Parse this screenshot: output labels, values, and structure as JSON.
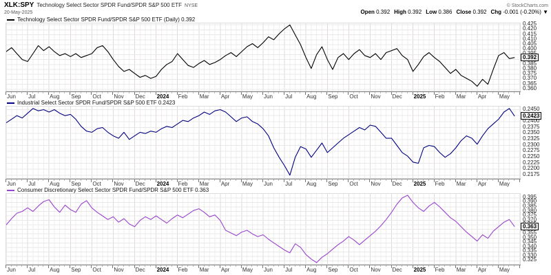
{
  "header": {
    "symbol": "XLK:SPY",
    "name": "Technology Select Sector SPDR Fund/SPDR S&P 500 ETF",
    "exchange": "NYSE",
    "date": "20-May-2025",
    "copyright": "© StockCharts.com",
    "ohlc": [
      {
        "label": "Open",
        "value": "0.392"
      },
      {
        "label": "High",
        "value": "0.392"
      },
      {
        "label": "Low",
        "value": "0.386"
      },
      {
        "label": "Close",
        "value": "0.392"
      },
      {
        "label": "Chg",
        "value": "-0.001 (-0.20%) ▼"
      }
    ]
  },
  "style": {
    "background": "#ffffff",
    "grid_week": "#f1efee",
    "grid_month": "#e2d8d8",
    "grid_horizontal": "#e8e8e8",
    "axis_text": "#222222",
    "frame": "#dddddd"
  },
  "chart_data": [
    {
      "type": "line",
      "title": "Technology Select Sector SPDR Fund/SPDR S&P 500 ETF (Daily) 0.392",
      "color": "#000000",
      "last_value": "0.392",
      "ylim": [
        0.3585,
        0.4265
      ],
      "yticks": [
        0.425,
        0.42,
        0.415,
        0.41,
        0.405,
        0.4,
        0.395,
        0.39,
        0.385,
        0.38,
        0.375,
        0.37,
        0.365,
        0.36
      ],
      "ytick_decimals": 3,
      "x_months": [
        "Jun",
        "Jul",
        "Aug",
        "Sep",
        "Oct",
        "Nov",
        "Dec",
        "2024",
        "Feb",
        "Mar",
        "Apr",
        "May",
        "Jun",
        "Jul",
        "Aug",
        "Sep",
        "Oct",
        "Nov",
        "Dec",
        "2025",
        "Feb",
        "Mar",
        "Apr",
        "May"
      ],
      "values": [
        0.398,
        0.402,
        0.396,
        0.39,
        0.388,
        0.396,
        0.404,
        0.399,
        0.403,
        0.398,
        0.394,
        0.396,
        0.393,
        0.396,
        0.392,
        0.394,
        0.396,
        0.402,
        0.404,
        0.398,
        0.39,
        0.383,
        0.378,
        0.38,
        0.376,
        0.372,
        0.374,
        0.371,
        0.373,
        0.38,
        0.385,
        0.388,
        0.396,
        0.39,
        0.384,
        0.382,
        0.386,
        0.389,
        0.385,
        0.387,
        0.39,
        0.394,
        0.397,
        0.393,
        0.398,
        0.403,
        0.406,
        0.402,
        0.407,
        0.413,
        0.41,
        0.416,
        0.421,
        0.425,
        0.415,
        0.405,
        0.392,
        0.381,
        0.395,
        0.403,
        0.39,
        0.38,
        0.392,
        0.396,
        0.39,
        0.396,
        0.4,
        0.394,
        0.392,
        0.396,
        0.39,
        0.397,
        0.399,
        0.401,
        0.394,
        0.39,
        0.378,
        0.385,
        0.393,
        0.397,
        0.392,
        0.388,
        0.382,
        0.376,
        0.38,
        0.374,
        0.371,
        0.368,
        0.363,
        0.37,
        0.365,
        0.38,
        0.394,
        0.397,
        0.391,
        0.392
      ]
    },
    {
      "type": "line",
      "title": "Industrial Select Sector SPDR Fund/SPDR S&P 500 ETF 0.2423",
      "color": "#000080",
      "last_value": "0.2423",
      "ylim": [
        0.2163,
        0.2463
      ],
      "yticks": [
        0.245,
        0.2425,
        0.24,
        0.2375,
        0.235,
        0.2325,
        0.23,
        0.2275,
        0.225,
        0.2225,
        0.22,
        0.2175
      ],
      "ytick_decimals": 4,
      "x_months": [
        "Jun",
        "Jul",
        "Aug",
        "Sep",
        "Oct",
        "Nov",
        "Dec",
        "2024",
        "Feb",
        "Mar",
        "Apr",
        "May",
        "Jun",
        "Jul",
        "Aug",
        "Sep",
        "Oct",
        "Nov",
        "Dec",
        "2025",
        "Feb",
        "Mar",
        "Apr",
        "May"
      ],
      "values": [
        0.2395,
        0.241,
        0.2425,
        0.2415,
        0.2435,
        0.2455,
        0.2445,
        0.245,
        0.244,
        0.245,
        0.2435,
        0.2425,
        0.243,
        0.241,
        0.238,
        0.236,
        0.2355,
        0.237,
        0.2375,
        0.2355,
        0.234,
        0.233,
        0.2355,
        0.2325,
        0.234,
        0.2355,
        0.235,
        0.236,
        0.2355,
        0.237,
        0.238,
        0.2375,
        0.239,
        0.2405,
        0.24,
        0.2415,
        0.2425,
        0.244,
        0.243,
        0.2445,
        0.245,
        0.244,
        0.242,
        0.24,
        0.2415,
        0.242,
        0.24,
        0.239,
        0.237,
        0.234,
        0.229,
        0.225,
        0.2215,
        0.2175,
        0.225,
        0.2295,
        0.2285,
        0.225,
        0.228,
        0.231,
        0.227,
        0.229,
        0.231,
        0.233,
        0.2345,
        0.236,
        0.2375,
        0.2365,
        0.2385,
        0.238,
        0.2355,
        0.233,
        0.233,
        0.23,
        0.227,
        0.2255,
        0.223,
        0.2225,
        0.229,
        0.23,
        0.2295,
        0.227,
        0.225,
        0.2265,
        0.229,
        0.232,
        0.234,
        0.233,
        0.2305,
        0.234,
        0.237,
        0.239,
        0.241,
        0.244,
        0.2455,
        0.2423
      ]
    },
    {
      "type": "line",
      "title": "Consumer Discretionary Select Sector SPDR Fund/SPDR S&P 500 ETF 0.363",
      "color": "#9944CC",
      "last_value": "0.363",
      "ylim": [
        0.3215,
        0.3995
      ],
      "yticks": [
        0.395,
        0.39,
        0.385,
        0.38,
        0.375,
        0.37,
        0.365,
        0.36,
        0.355,
        0.35,
        0.345,
        0.34,
        0.335,
        0.33,
        0.325
      ],
      "ytick_decimals": 3,
      "x_months": [
        "Jun",
        "Jul",
        "Aug",
        "Sep",
        "Oct",
        "Nov",
        "Dec",
        "2024",
        "Feb",
        "Mar",
        "Apr",
        "May",
        "Jun",
        "Jul",
        "Aug",
        "Sep",
        "Oct",
        "Nov",
        "Dec",
        "2025",
        "Feb",
        "Mar",
        "Apr",
        "May"
      ],
      "values": [
        0.365,
        0.372,
        0.378,
        0.38,
        0.384,
        0.38,
        0.386,
        0.391,
        0.393,
        0.385,
        0.379,
        0.387,
        0.382,
        0.379,
        0.388,
        0.392,
        0.384,
        0.379,
        0.375,
        0.371,
        0.374,
        0.368,
        0.372,
        0.366,
        0.363,
        0.37,
        0.374,
        0.371,
        0.375,
        0.371,
        0.367,
        0.372,
        0.376,
        0.373,
        0.377,
        0.381,
        0.383,
        0.379,
        0.374,
        0.376,
        0.37,
        0.359,
        0.356,
        0.353,
        0.357,
        0.359,
        0.355,
        0.352,
        0.354,
        0.349,
        0.345,
        0.341,
        0.337,
        0.334,
        0.344,
        0.34,
        0.332,
        0.327,
        0.323,
        0.329,
        0.333,
        0.338,
        0.343,
        0.347,
        0.352,
        0.348,
        0.343,
        0.348,
        0.353,
        0.358,
        0.364,
        0.371,
        0.379,
        0.388,
        0.395,
        0.398,
        0.39,
        0.384,
        0.38,
        0.386,
        0.39,
        0.385,
        0.379,
        0.373,
        0.369,
        0.363,
        0.357,
        0.352,
        0.347,
        0.354,
        0.35,
        0.358,
        0.363,
        0.368,
        0.371,
        0.363
      ]
    }
  ]
}
